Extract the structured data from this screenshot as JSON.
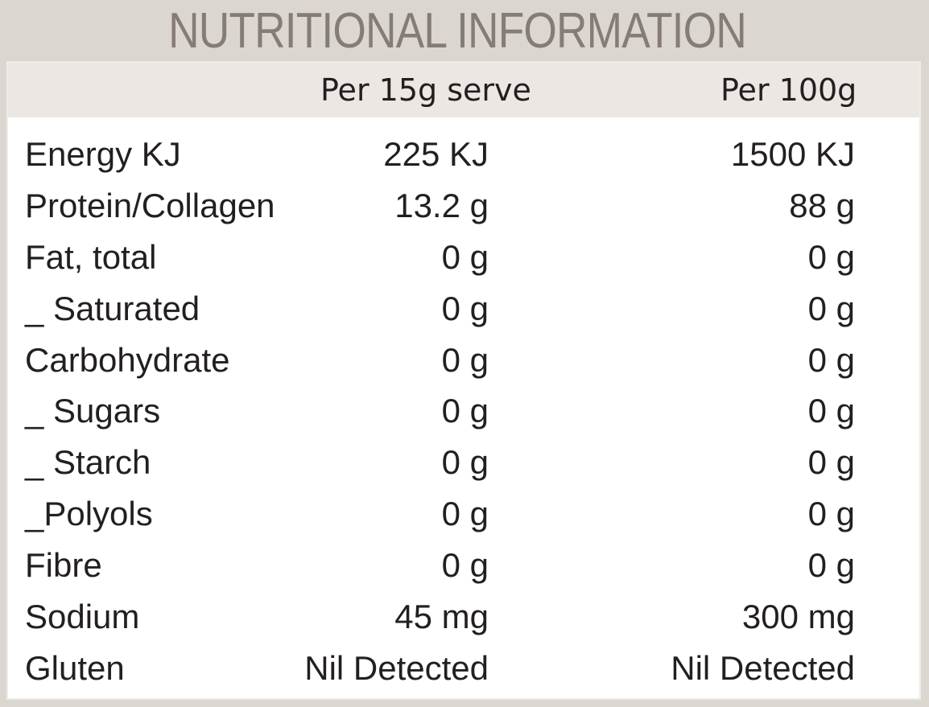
{
  "title": "NUTRITIONAL INFORMATION",
  "columns": {
    "per_serve": "Per 15g serve",
    "per_100g": "Per 100g"
  },
  "rows": [
    {
      "label": "Energy KJ",
      "per_serve": "225 KJ",
      "per_100g": "1500 KJ"
    },
    {
      "label": "Protein/Collagen",
      "per_serve": "13.2 g",
      "per_100g": "88 g"
    },
    {
      "label": "Fat, total",
      "per_serve": "0 g",
      "per_100g": "0 g"
    },
    {
      "label": "_ Saturated",
      "per_serve": "0 g",
      "per_100g": "0 g"
    },
    {
      "label": "Carbohydrate",
      "per_serve": "0 g",
      "per_100g": "0 g"
    },
    {
      "label": "_ Sugars",
      "per_serve": "0 g",
      "per_100g": "0 g"
    },
    {
      "label": "_ Starch",
      "per_serve": "0 g",
      "per_100g": "0 g"
    },
    {
      "label": "_Polyols",
      "per_serve": "0 g",
      "per_100g": "0 g"
    },
    {
      "label": "Fibre",
      "per_serve": "0 g",
      "per_100g": "0 g"
    },
    {
      "label": "Sodium",
      "per_serve": "45 mg",
      "per_100g": "300 mg"
    },
    {
      "label": "Gluten",
      "per_serve": "Nil Detected",
      "per_100g": "Nil Detected"
    }
  ],
  "colors": {
    "background": "#dcd6d0",
    "title": "#857c75",
    "header_band": "#ece7e3",
    "text": "#231f20"
  }
}
